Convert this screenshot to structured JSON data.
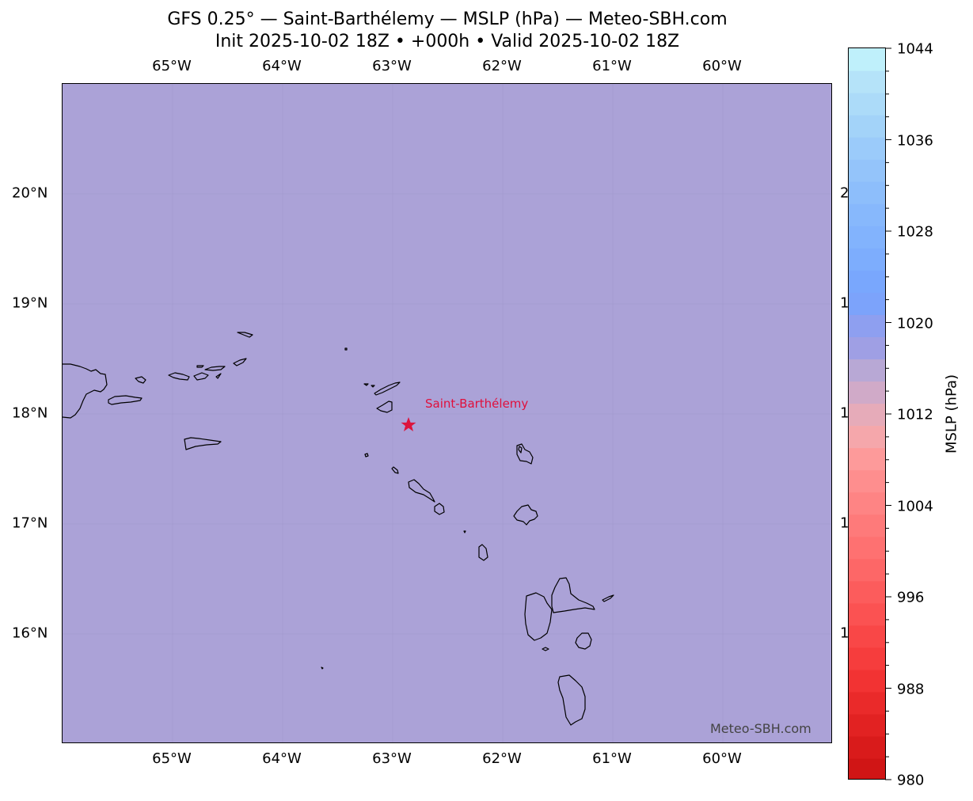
{
  "title": {
    "line1": "GFS 0.25° — Saint-Barthélemy — MSLP (hPa) — Meteo-SBH.com",
    "line2": "Init 2025-10-02 18Z • +000h • Valid 2025-10-02 18Z"
  },
  "map": {
    "background_color": "#aba2d7",
    "lon_labels": [
      "65°W",
      "64°W",
      "63°W",
      "62°W",
      "61°W",
      "60°W"
    ],
    "lat_labels": [
      "20°N",
      "19°N",
      "18°N",
      "17°N",
      "16°N"
    ],
    "right_lat_labels_clipped": [
      "2",
      "1",
      "1",
      "1",
      "1"
    ],
    "marker": {
      "label": "Saint-Barthélemy",
      "color": "#dc143c",
      "icon": "star-icon"
    },
    "watermark": "Meteo-SBH.com"
  },
  "colorbar": {
    "title": "MSLP (hPa)",
    "min": 980,
    "max": 1044,
    "tick_labels": [
      "1044",
      "1036",
      "1028",
      "1020",
      "1012",
      "1004",
      "996",
      "988",
      "980"
    ],
    "colors": [
      "#d01515",
      "#d91b1b",
      "#e22222",
      "#ea2a2a",
      "#f23333",
      "#f63d3d",
      "#f94747",
      "#fb5252",
      "#fc5c5c",
      "#fd6767",
      "#fe7171",
      "#fe7a7a",
      "#fe8484",
      "#fe8e8e",
      "#fd9a9a",
      "#f5a7ab",
      "#e6abb9",
      "#d0aac8",
      "#b8a8d5",
      "#9f9fe4",
      "#8e9ff0",
      "#7ca3fb",
      "#79a7fd",
      "#7dadfd",
      "#82b3fd",
      "#87b8fc",
      "#8dbefb",
      "#94c4fa",
      "#9bcbfa",
      "#a3d3f9",
      "#acdbf9",
      "#b5e3f9",
      "#bff0fb"
    ]
  }
}
